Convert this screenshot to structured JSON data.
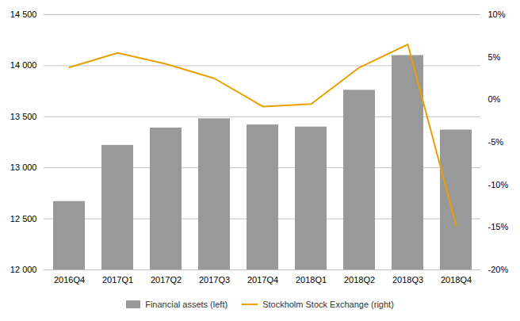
{
  "chart_data": {
    "type": "bar",
    "categories": [
      "2016Q4",
      "2017Q1",
      "2017Q2",
      "2017Q3",
      "2017Q4",
      "2018Q1",
      "2018Q2",
      "2018Q3",
      "2018Q4"
    ],
    "series": [
      {
        "name": "Financial assets (left)",
        "type": "bar",
        "color": "#999999",
        "values": [
          12670,
          13220,
          13390,
          13480,
          13420,
          13400,
          13760,
          14100,
          13370
        ]
      },
      {
        "name": "Stockholm Stock Exchange (right)",
        "type": "line",
        "color": "#E8A000",
        "axis": "y2",
        "values": [
          3.8,
          5.5,
          4.2,
          2.5,
          -0.8,
          -0.5,
          3.8,
          6.5,
          -14.8
        ]
      }
    ],
    "ylim": [
      12000,
      14500
    ],
    "yticks": [
      {
        "value": 12000,
        "label": "12 000"
      },
      {
        "value": 12500,
        "label": "12 500"
      },
      {
        "value": 13000,
        "label": "13 000"
      },
      {
        "value": 13500,
        "label": "13 500"
      },
      {
        "value": 14000,
        "label": "14 000"
      },
      {
        "value": 14500,
        "label": "14 500"
      }
    ],
    "y2lim": [
      -20,
      10
    ],
    "y2ticks": [
      {
        "value": -20,
        "label": "-20%"
      },
      {
        "value": -15,
        "label": "-15%"
      },
      {
        "value": -10,
        "label": "-10%"
      },
      {
        "value": -5,
        "label": "-5%"
      },
      {
        "value": 0,
        "label": "0%"
      },
      {
        "value": 5,
        "label": "5%"
      },
      {
        "value": 10,
        "label": "10%"
      }
    ],
    "grid": true,
    "legend": "bottom"
  }
}
